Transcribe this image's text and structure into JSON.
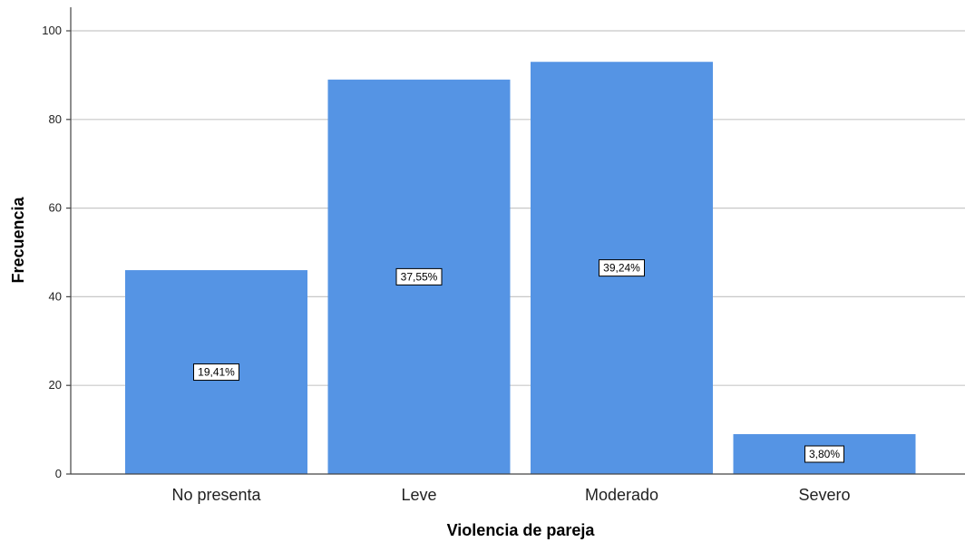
{
  "chart_data": {
    "type": "bar",
    "categories": [
      "No presenta",
      "Leve",
      "Moderado",
      "Severo"
    ],
    "values": [
      46,
      89,
      93,
      9
    ],
    "data_labels": [
      "19,41%",
      "37,55%",
      "39,24%",
      "3,80%"
    ],
    "xlabel": "Violencia de pareja",
    "ylabel": "Frecuencia",
    "ylim": [
      0,
      104
    ],
    "yticks": [
      0,
      20,
      40,
      60,
      80,
      100
    ],
    "grid": true,
    "legend": "none",
    "bar_color": "#5594e4",
    "grid_color": "#c8c8c8"
  }
}
